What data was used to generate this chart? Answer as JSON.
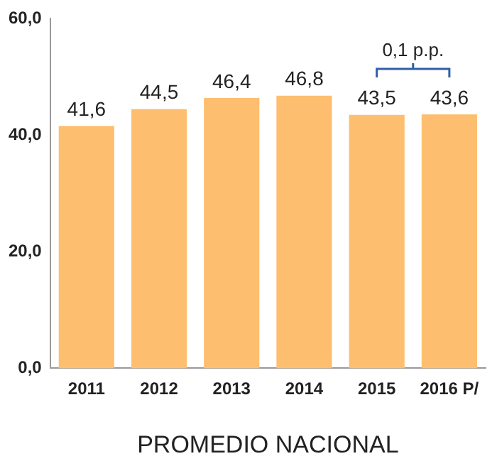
{
  "chart_data": {
    "type": "bar",
    "xlabel": "PROMEDIO NACIONAL",
    "categories": [
      "2011",
      "2012",
      "2013",
      "2014",
      "2015",
      "2016 P/"
    ],
    "values": [
      41.6,
      44.5,
      46.4,
      46.8,
      43.5,
      43.6
    ],
    "value_labels": [
      "41,6",
      "44,5",
      "46,4",
      "46,8",
      "43,5",
      "43,6"
    ],
    "color": "#fdbf6f",
    "ylim": [
      0,
      60
    ],
    "yticks": [
      {
        "value": 0,
        "label": "0,0"
      },
      {
        "value": 20,
        "label": "20,0"
      },
      {
        "value": 40,
        "label": "40,0"
      },
      {
        "value": 60,
        "label": "60,0"
      }
    ],
    "grid": false,
    "legend": false,
    "annotations": [
      "0,1 p.p."
    ]
  }
}
